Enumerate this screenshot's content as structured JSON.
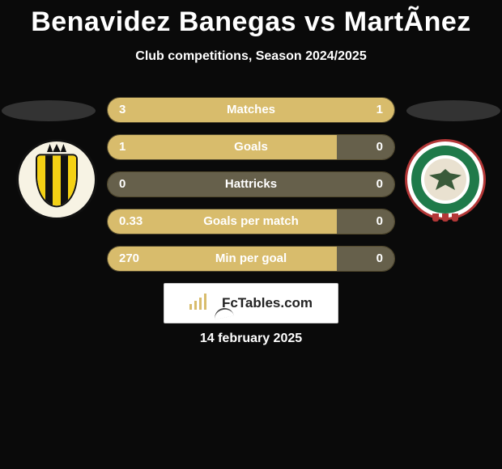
{
  "title": "Benavidez Banegas vs MartÃnez",
  "subtitle": "Club competitions, Season 2024/2025",
  "date_text": "14 february 2025",
  "brand": {
    "text": "FcTables.com"
  },
  "colors": {
    "primary_bar": "#d8bc6c",
    "secondary_bar": "#d8bc6c",
    "inactive_bar": "#66604b",
    "row_border": "rgba(216,188,108,0.35)",
    "background": "#0a0a0a",
    "text": "#ffffff",
    "brand_bg": "#ffffff",
    "brand_text": "#222222"
  },
  "crest_left": {
    "bg": "#f7f3e4",
    "border": "#111111",
    "stripe_a": "#f4d114",
    "stripe_b": "#111111"
  },
  "crest_right": {
    "outer_border": "#b33737",
    "ring": "#1f7a4a",
    "inner": "#e9e1d0",
    "eagle": "#3a5a3a",
    "tab": "#b33737"
  },
  "stats": [
    {
      "label": "Matches",
      "left_val": "3",
      "right_val": "1",
      "left_pct": 76,
      "right_pct": 24
    },
    {
      "label": "Goals",
      "left_val": "1",
      "right_val": "0",
      "left_pct": 80,
      "right_pct": 20,
      "right_muted": true
    },
    {
      "label": "Hattricks",
      "left_val": "0",
      "right_val": "0",
      "left_pct": 50,
      "right_pct": 50,
      "both_muted": true
    },
    {
      "label": "Goals per match",
      "left_val": "0.33",
      "right_val": "0",
      "left_pct": 80,
      "right_pct": 20,
      "right_muted": true
    },
    {
      "label": "Min per goal",
      "left_val": "270",
      "right_val": "0",
      "left_pct": 80,
      "right_pct": 20,
      "right_muted": true
    }
  ]
}
